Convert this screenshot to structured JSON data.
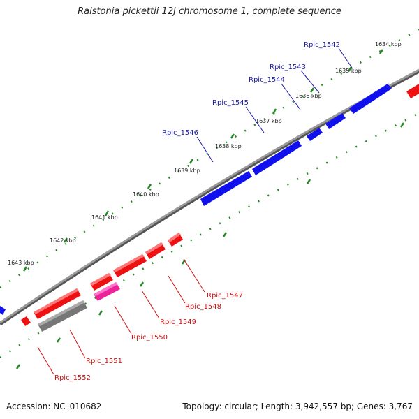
{
  "title": "Ralstonia pickettii 12J chromosome 1, complete sequence",
  "footer": {
    "accession_label": "Accession:",
    "accession": "NC_010682",
    "summary": "Topology: circular; Length: 3,942,557 bp; Genes: 3,767"
  },
  "colors": {
    "forward_gene": "#1010ee",
    "reverse_gene": "#ee1111",
    "rna_gene": "#ee2299",
    "pseudo_gene": "#777777",
    "tick": "#228822",
    "backbone": "#888888",
    "forward_label": "#1a1aa6",
    "reverse_label": "#cc1111"
  },
  "ticks": [
    {
      "label": "1634 kbp"
    },
    {
      "label": "1635 kbp"
    },
    {
      "label": "1636 kbp"
    },
    {
      "label": "1637 kbp"
    },
    {
      "label": "1638 kbp"
    },
    {
      "label": "1639 kbp"
    },
    {
      "label": "1640 kbp"
    },
    {
      "label": "1641 kbp"
    },
    {
      "label": "1642 kbp"
    },
    {
      "label": "1643 kbp"
    }
  ],
  "forward_genes": [
    {
      "label": "Rpic_1542"
    },
    {
      "label": "Rpic_1543"
    },
    {
      "label": "Rpic_1544"
    },
    {
      "label": "Rpic_1545"
    },
    {
      "label": "Rpic_1546"
    }
  ],
  "reverse_genes": [
    {
      "label": "Rpic_1547"
    },
    {
      "label": "Rpic_1548"
    },
    {
      "label": "Rpic_1549"
    },
    {
      "label": "Rpic_1550"
    },
    {
      "label": "Rpic_1551"
    },
    {
      "label": "Rpic_1552"
    }
  ]
}
